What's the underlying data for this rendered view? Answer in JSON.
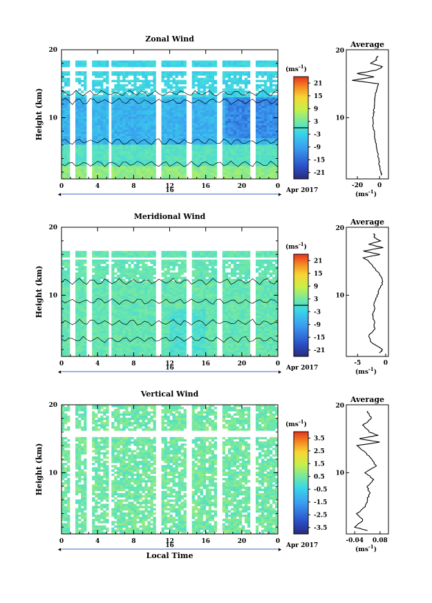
{
  "chart_data": [
    {
      "type": "heatmap",
      "title": "Zonal Wind",
      "ylabel": "Height (km)",
      "xlabel": "",
      "x_ticks": [
        "0",
        "4",
        "8",
        "12",
        "16",
        "20",
        "0"
      ],
      "xlim": [
        0,
        24
      ],
      "y_ticks": [
        "10",
        "20"
      ],
      "ylim": [
        1,
        20
      ],
      "date_label": "16",
      "month_label": "Apr 2017",
      "colorbar": {
        "unit": "(ms",
        "unit_sup": "-1",
        "unit_close": ")",
        "ticks": [
          "21",
          "15",
          "9",
          "3",
          "-3",
          "-9",
          "-15",
          "-21"
        ],
        "range": [
          -24,
          24
        ],
        "zero_line": true
      },
      "average_profile": {
        "title": "Average",
        "x_ticks": [
          "-20",
          "0"
        ],
        "xlim": [
          -30,
          8
        ],
        "xunit": "(ms",
        "xunit_sup": "-1",
        "xunit_close": ")",
        "height_km": [
          1.5,
          2,
          3,
          4,
          5,
          6,
          7,
          8,
          9,
          10,
          11,
          12,
          13,
          14,
          15,
          15.5,
          16,
          16.5,
          17,
          17.5,
          18,
          18.5,
          19
        ],
        "values": [
          2,
          1,
          0,
          -1,
          -2,
          -3,
          -4,
          -5,
          -6,
          -6,
          -5,
          -5,
          -4,
          -3,
          -1,
          -25,
          -5,
          -20,
          -3,
          3,
          -8,
          -3,
          -2
        ]
      }
    },
    {
      "type": "heatmap",
      "title": "Meridional Wind",
      "ylabel": "Height (km)",
      "xlabel": "",
      "x_ticks": [
        "0",
        "4",
        "8",
        "12",
        "16",
        "20",
        "0"
      ],
      "xlim": [
        0,
        24
      ],
      "y_ticks": [
        "10",
        "20"
      ],
      "ylim": [
        1,
        20
      ],
      "date_label": "16",
      "month_label": "Apr 2017",
      "colorbar": {
        "unit": "(ms",
        "unit_sup": "-1",
        "unit_close": ")",
        "ticks": [
          "21",
          "15",
          "9",
          "3",
          "-3",
          "-9",
          "-15",
          "-21"
        ],
        "range": [
          -24,
          24
        ],
        "zero_line": true
      },
      "average_profile": {
        "title": "Average",
        "x_ticks": [
          "-5",
          "0"
        ],
        "xlim": [
          -7,
          0.5
        ],
        "xunit": "(ms",
        "xunit_sup": "-1",
        "xunit_close": ")",
        "height_km": [
          1.5,
          2,
          3,
          4,
          5,
          6,
          7,
          8,
          9,
          10,
          11,
          12,
          13,
          14,
          15,
          15.5,
          16,
          16.5,
          17,
          17.5,
          18,
          18.5,
          19
        ],
        "values": [
          -1,
          -0.5,
          -2.5,
          -3,
          -2,
          -2,
          -2.3,
          -2,
          -2,
          -1.5,
          -1,
          -0.5,
          -1,
          -2,
          -3,
          -4,
          -1,
          -4,
          -0.5,
          -3,
          -1,
          -2,
          -2
        ]
      }
    },
    {
      "type": "heatmap",
      "title": "Vertical Wind",
      "ylabel": "Height (km)",
      "xlabel": "Local Time",
      "x_ticks": [
        "0",
        "4",
        "8",
        "12",
        "16",
        "20",
        "0"
      ],
      "xlim": [
        0,
        24
      ],
      "y_ticks": [
        "10",
        "20"
      ],
      "ylim": [
        1,
        20
      ],
      "date_label": "16",
      "month_label": "Apr 2017",
      "colorbar": {
        "unit": "(ms",
        "unit_sup": "-1",
        "unit_close": ")",
        "ticks": [
          "3.5",
          "2.5",
          "1.5",
          "0.5",
          "-0.5",
          "-1.5",
          "-2.5",
          "-3.5"
        ],
        "range": [
          -4,
          4
        ],
        "zero_line": false
      },
      "average_profile": {
        "title": "Average",
        "x_ticks": [
          "-0.04",
          "0.08"
        ],
        "xlim": [
          -0.08,
          0.12
        ],
        "xunit": "(ms",
        "xunit_sup": "-1",
        "xunit_close": ")",
        "height_km": [
          1.5,
          2,
          3,
          4,
          5,
          6,
          7,
          8,
          9,
          10,
          11,
          12,
          13,
          14,
          14.5,
          15,
          15.5,
          16,
          17,
          18,
          19
        ],
        "values": [
          0.02,
          -0.04,
          0,
          -0.03,
          0.01,
          0.02,
          0.03,
          0.02,
          0.05,
          0.01,
          0.06,
          0.04,
          0.01,
          -0.03,
          0.08,
          -0.02,
          0.07,
          0.03,
          0.0,
          0.04,
          0.02
        ]
      }
    }
  ]
}
